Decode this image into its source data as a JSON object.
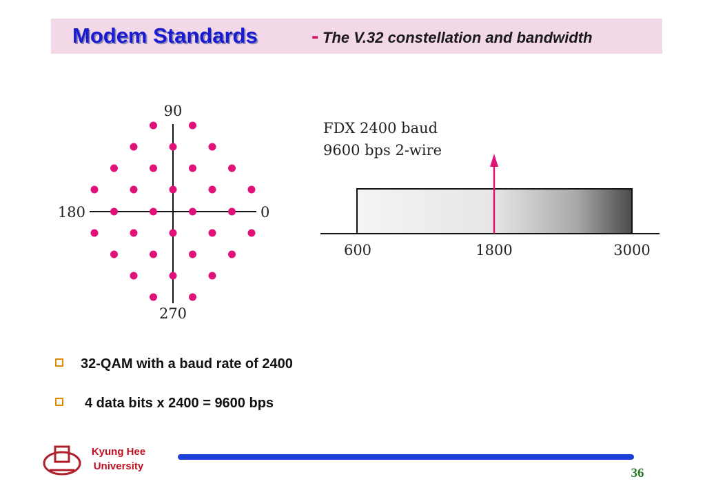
{
  "header": {
    "title": "Modem Standards",
    "separator": "-",
    "subtitle": "The V.32 constellation and bandwidth"
  },
  "constellation": {
    "labels": {
      "top": "90",
      "left": "180",
      "right": "0",
      "bottom": "270"
    }
  },
  "bandwidth": {
    "caption": [
      "FDX 2400 baud",
      "9600 bps 2-wire"
    ],
    "axis_labels": [
      "600",
      "1800",
      "3000"
    ]
  },
  "bullets": [
    "32-QAM with a baud rate of 2400",
    "4 data bits x 2400 = 9600 bps"
  ],
  "footer": {
    "university": [
      "Kyung Hee",
      "University"
    ],
    "page_number": "36"
  }
}
